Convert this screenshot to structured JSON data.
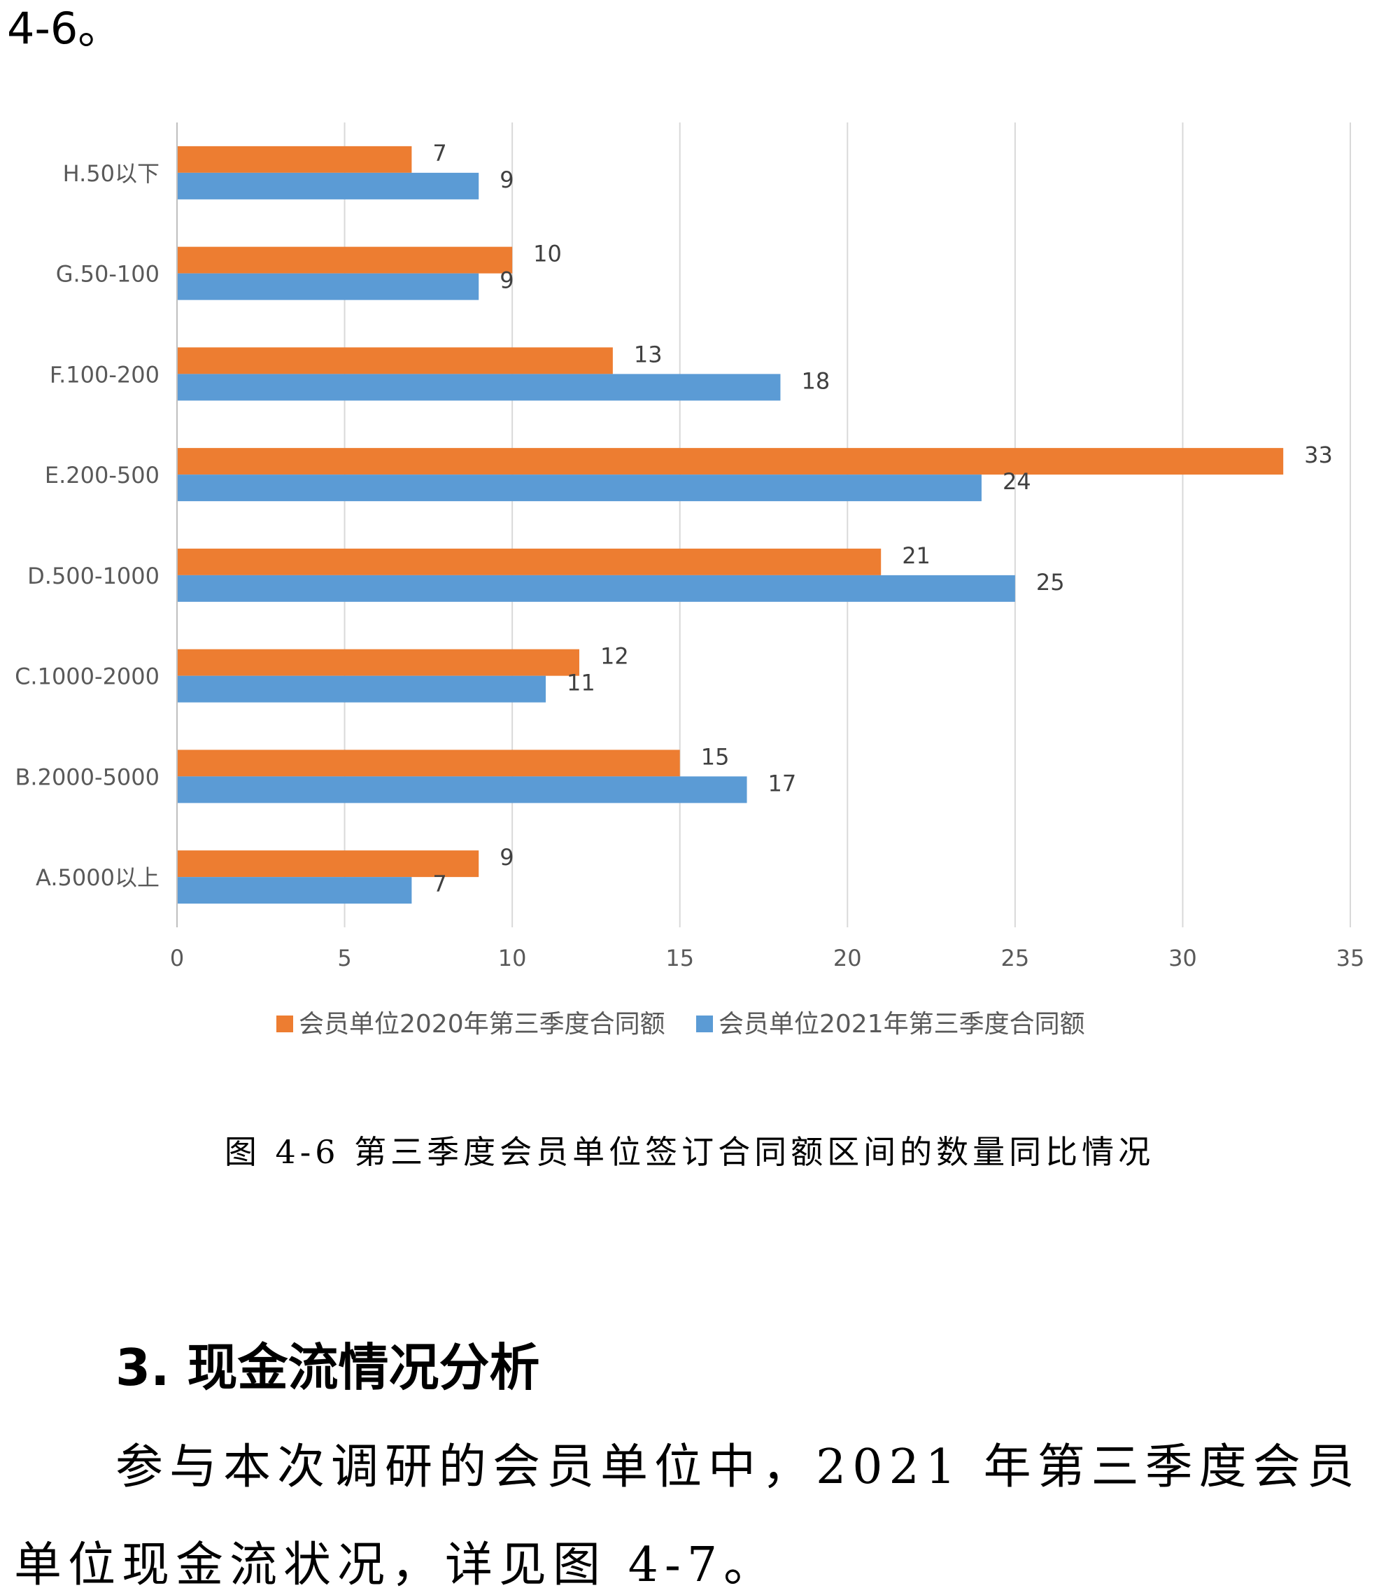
{
  "page": {
    "top_fragment": "4-6。",
    "caption": "图 4-6 第三季度会员单位签订合同额区间的数量同比情况",
    "section_heading": "3. 现金流情况分析",
    "paragraph_line1": "参与本次调研的会员单位中，2021 年第三季度会员",
    "paragraph_line2": "单位现金流状况，详见图 4-7。"
  },
  "chart_data": {
    "type": "bar",
    "orientation": "horizontal",
    "categories": [
      "H.50以下",
      "G.50-100",
      "F.100-200",
      "E.200-500",
      "D.500-1000",
      "C.1000-2000",
      "B.2000-5000",
      "A.5000以上"
    ],
    "series": [
      {
        "name": "会员单位2020年第三季度合同额",
        "color": "#ED7D31",
        "values": [
          7,
          10,
          13,
          33,
          21,
          12,
          15,
          9
        ]
      },
      {
        "name": "会员单位2021年第三季度合同额",
        "color": "#5B9BD5",
        "values": [
          9,
          9,
          18,
          24,
          25,
          11,
          17,
          7
        ]
      }
    ],
    "xlim": [
      0,
      35
    ],
    "xticks": [
      0,
      5,
      10,
      15,
      20,
      25,
      30,
      35
    ],
    "grid": true,
    "legend_position": "bottom",
    "data_labels": true
  }
}
